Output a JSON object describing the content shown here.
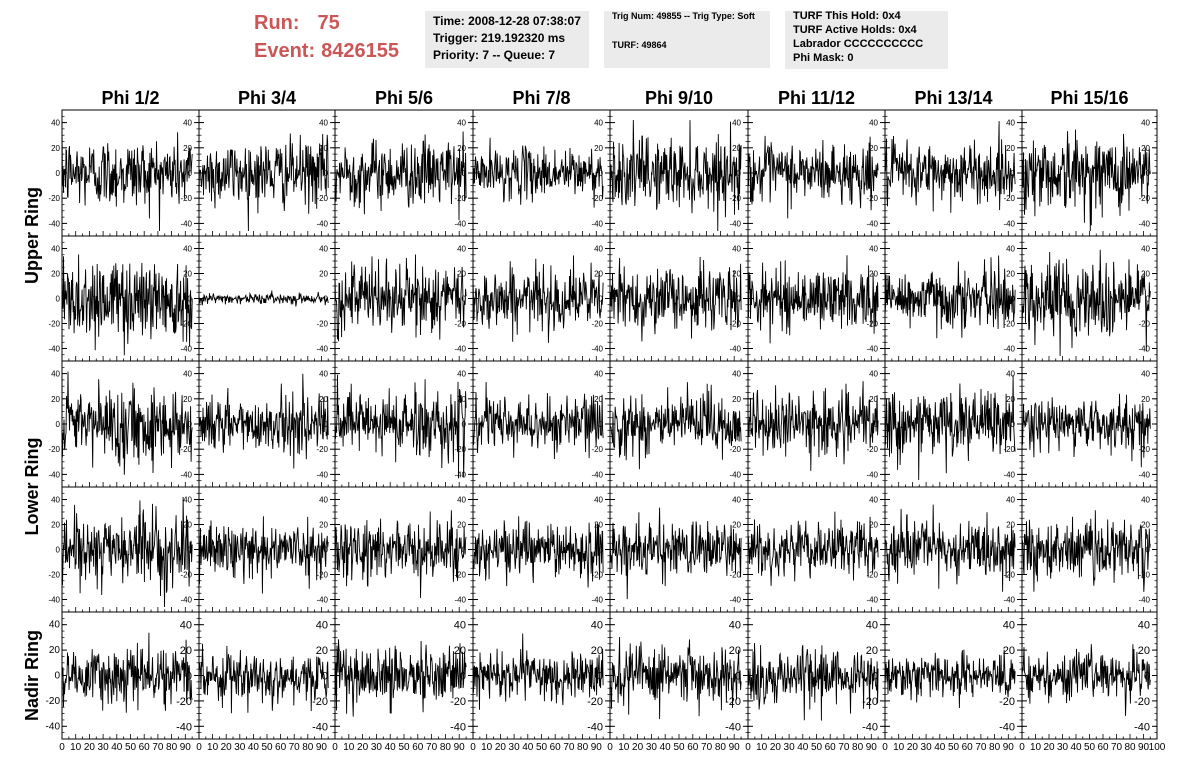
{
  "header": {
    "run_label": "Run:",
    "run_value": "75",
    "event_label": "Event:",
    "event_value": "8426155",
    "time": "Time: 2008-12-28 07:38:07",
    "trigger": "Trigger: 219.192320 ms",
    "priority": "Priority: 7 -- Queue: 7",
    "trig_num": "Trig Num: 49855 -- Trig Type: Soft",
    "turf": "TURF: 49864",
    "turf_this_hold": "TURF This Hold: 0x4",
    "turf_active_holds": "TURF Active Holds: 0x4",
    "labrador": "Labrador CCCCCCCCCC",
    "phi_mask": "Phi Mask: 0"
  },
  "chart_data": {
    "type": "line",
    "columns": [
      "Phi 1/2",
      "Phi 3/4",
      "Phi 5/6",
      "Phi 7/8",
      "Phi 9/10",
      "Phi 11/12",
      "Phi 13/14",
      "Phi 15/16"
    ],
    "rows": [
      "Upper Ring",
      "Lower Ring",
      "Nadir Ring"
    ],
    "row_groups": [
      {
        "label": "Upper Ring",
        "panel_rows": [
          0,
          1
        ]
      },
      {
        "label": "Lower Ring",
        "panel_rows": [
          2,
          3
        ]
      },
      {
        "label": "Nadir Ring",
        "panel_rows": [
          4
        ]
      }
    ],
    "panel_rows": 5,
    "xlim": [
      0,
      100
    ],
    "ylim": [
      -50,
      50
    ],
    "x_ticks": [
      0,
      10,
      20,
      30,
      40,
      50,
      60,
      70,
      80,
      90,
      100
    ],
    "x_tick_labels": [
      "0",
      "10",
      "20",
      "30",
      "40",
      "50",
      "60",
      "70",
      "80",
      "90",
      "100"
    ],
    "y_ticks": [
      -40,
      -20,
      0,
      20,
      40
    ],
    "y_tick_labels": [
      "-40",
      "-20",
      "0",
      "20",
      "40"
    ],
    "samples_per_trace": 260,
    "x_end": 95,
    "trace_amplitude": [
      [
        14,
        13,
        13,
        10,
        14,
        12,
        12,
        15
      ],
      [
        17,
        2,
        14,
        12,
        13,
        12,
        12,
        16
      ],
      [
        15,
        11,
        14,
        11,
        13,
        12,
        13,
        10
      ],
      [
        14,
        10,
        12,
        11,
        11,
        11,
        11,
        13
      ],
      [
        11,
        10,
        11,
        10,
        11,
        11,
        9,
        9
      ]
    ],
    "trace_color": "#000000"
  }
}
